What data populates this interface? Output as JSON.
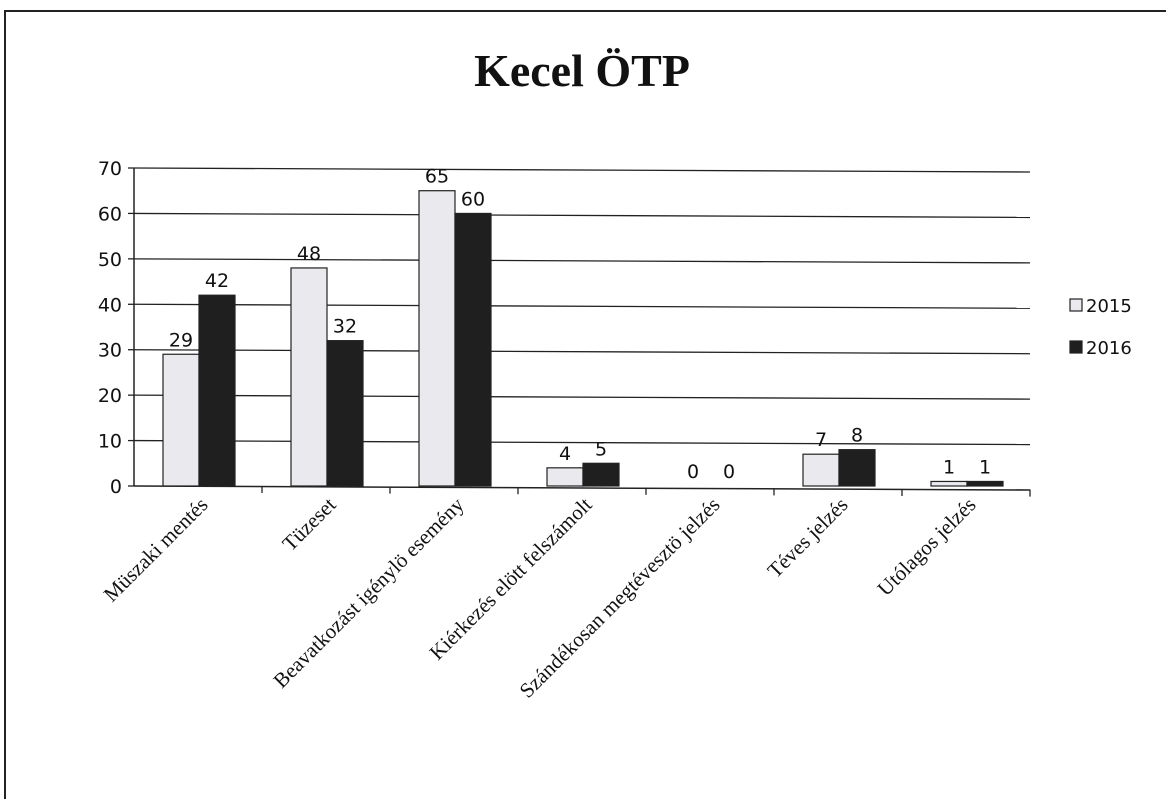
{
  "chart_data": {
    "type": "bar",
    "title": "Kecel ÖTP",
    "categories": [
      "Müszaki mentés",
      "Tüzeset",
      "Beavatkozást igénylö esemény",
      "Kiérkezés elött felszámolt",
      "Szándékosan megtévesztö jelzés",
      "Téves jelzés",
      "Utólagos jelzés"
    ],
    "series": [
      {
        "name": "2015",
        "values": [
          29,
          48,
          65,
          4,
          0,
          7,
          1
        ],
        "color": "#e9e9ee"
      },
      {
        "name": "2016",
        "values": [
          42,
          32,
          60,
          5,
          0,
          8,
          1
        ],
        "color": "#1f1f1f"
      }
    ],
    "ylim": [
      0,
      70
    ],
    "yticks": [
      0,
      10,
      20,
      30,
      40,
      50,
      60,
      70
    ],
    "grid": true,
    "legend": "right"
  }
}
